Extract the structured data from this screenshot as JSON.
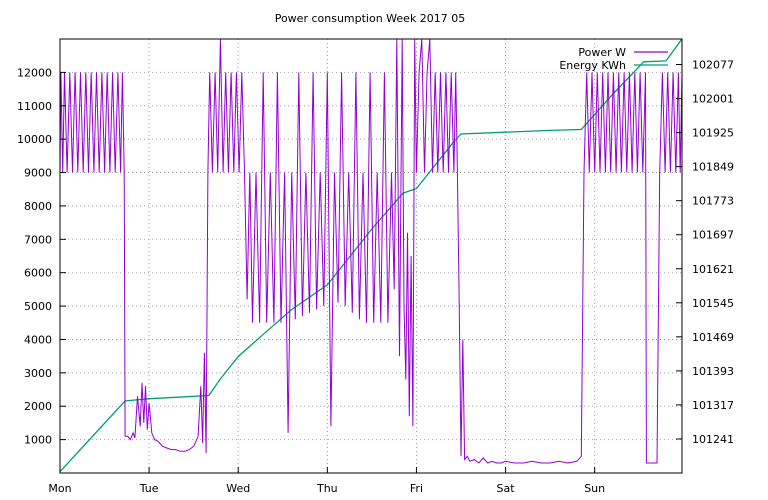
{
  "chart_data": {
    "type": "line",
    "title": "Power consumption Week 2017 05",
    "x_ticks": [
      {
        "label": "Mon",
        "x": 0
      },
      {
        "label": "Tue",
        "x": 1
      },
      {
        "label": "Wed",
        "x": 2
      },
      {
        "label": "Thu",
        "x": 3
      },
      {
        "label": "Fri",
        "x": 4
      },
      {
        "label": "Sat",
        "x": 5
      },
      {
        "label": "Sun",
        "x": 6
      }
    ],
    "xlim": [
      0,
      6.98
    ],
    "ylim_left": [
      0,
      13000
    ],
    "ylim_right": [
      101165,
      102134
    ],
    "y_ticks_left": [
      1000,
      2000,
      3000,
      4000,
      5000,
      6000,
      7000,
      8000,
      9000,
      10000,
      11000,
      12000
    ],
    "y_ticks_right": [
      101241,
      101317,
      101393,
      101469,
      101545,
      101621,
      101697,
      101773,
      101849,
      101925,
      102001,
      102077
    ],
    "grid": true,
    "legend_position": "top-right",
    "series": [
      {
        "name": "Power W",
        "axis": "left",
        "color": "#9400d3",
        "points": [
          [
            0.0,
            9000
          ],
          [
            0.01,
            12000
          ],
          [
            0.03,
            9000
          ],
          [
            0.05,
            12000
          ],
          [
            0.08,
            9000
          ],
          [
            0.11,
            12000
          ],
          [
            0.14,
            9000
          ],
          [
            0.17,
            12000
          ],
          [
            0.2,
            9000
          ],
          [
            0.23,
            12000
          ],
          [
            0.26,
            9000
          ],
          [
            0.29,
            12000
          ],
          [
            0.32,
            9000
          ],
          [
            0.35,
            12000
          ],
          [
            0.38,
            9000
          ],
          [
            0.41,
            12000
          ],
          [
            0.44,
            9000
          ],
          [
            0.47,
            12000
          ],
          [
            0.5,
            9000
          ],
          [
            0.53,
            12000
          ],
          [
            0.56,
            9000
          ],
          [
            0.59,
            12000
          ],
          [
            0.62,
            9000
          ],
          [
            0.65,
            12000
          ],
          [
            0.68,
            9000
          ],
          [
            0.7,
            12000
          ],
          [
            0.72,
            9000
          ],
          [
            0.73,
            1100
          ],
          [
            0.76,
            1100
          ],
          [
            0.79,
            1000
          ],
          [
            0.82,
            1200
          ],
          [
            0.84,
            1050
          ],
          [
            0.87,
            2300
          ],
          [
            0.9,
            1400
          ],
          [
            0.92,
            2700
          ],
          [
            0.94,
            1500
          ],
          [
            0.96,
            2600
          ],
          [
            0.98,
            1300
          ],
          [
            1.0,
            2100
          ],
          [
            1.03,
            1200
          ],
          [
            1.06,
            1000
          ],
          [
            1.1,
            950
          ],
          [
            1.15,
            800
          ],
          [
            1.2,
            750
          ],
          [
            1.25,
            700
          ],
          [
            1.3,
            700
          ],
          [
            1.35,
            650
          ],
          [
            1.4,
            650
          ],
          [
            1.45,
            700
          ],
          [
            1.5,
            800
          ],
          [
            1.55,
            1100
          ],
          [
            1.58,
            2600
          ],
          [
            1.6,
            900
          ],
          [
            1.62,
            3600
          ],
          [
            1.64,
            600
          ],
          [
            1.66,
            9000
          ],
          [
            1.68,
            12000
          ],
          [
            1.71,
            9000
          ],
          [
            1.74,
            12000
          ],
          [
            1.77,
            9000
          ],
          [
            1.8,
            13000
          ],
          [
            1.83,
            9000
          ],
          [
            1.86,
            12000
          ],
          [
            1.89,
            9000
          ],
          [
            1.92,
            12000
          ],
          [
            1.95,
            9000
          ],
          [
            1.98,
            12000
          ],
          [
            2.01,
            9000
          ],
          [
            2.04,
            12000
          ],
          [
            2.07,
            9000
          ],
          [
            2.1,
            5200
          ],
          [
            2.13,
            9000
          ],
          [
            2.16,
            4500
          ],
          [
            2.2,
            9000
          ],
          [
            2.24,
            4500
          ],
          [
            2.28,
            12000
          ],
          [
            2.32,
            4500
          ],
          [
            2.36,
            9000
          ],
          [
            2.4,
            4500
          ],
          [
            2.44,
            12000
          ],
          [
            2.48,
            4500
          ],
          [
            2.52,
            9000
          ],
          [
            2.56,
            1200
          ],
          [
            2.6,
            9000
          ],
          [
            2.64,
            4600
          ],
          [
            2.68,
            12000
          ],
          [
            2.72,
            4700
          ],
          [
            2.76,
            9000
          ],
          [
            2.8,
            4800
          ],
          [
            2.84,
            12000
          ],
          [
            2.88,
            4900
          ],
          [
            2.92,
            9000
          ],
          [
            2.96,
            5000
          ],
          [
            3.0,
            12000
          ],
          [
            3.04,
            1400
          ],
          [
            3.08,
            9000
          ],
          [
            3.12,
            5100
          ],
          [
            3.16,
            12000
          ],
          [
            3.2,
            5000
          ],
          [
            3.24,
            9000
          ],
          [
            3.28,
            4800
          ],
          [
            3.32,
            12000
          ],
          [
            3.36,
            4600
          ],
          [
            3.4,
            9000
          ],
          [
            3.44,
            4500
          ],
          [
            3.48,
            12000
          ],
          [
            3.52,
            4500
          ],
          [
            3.56,
            9000
          ],
          [
            3.6,
            4500
          ],
          [
            3.64,
            12000
          ],
          [
            3.68,
            4500
          ],
          [
            3.72,
            9000
          ],
          [
            3.75,
            5500
          ],
          [
            3.78,
            13000
          ],
          [
            3.81,
            3500
          ],
          [
            3.84,
            13000
          ],
          [
            3.86,
            5000
          ],
          [
            3.88,
            2800
          ],
          [
            3.9,
            7200
          ],
          [
            3.92,
            1700
          ],
          [
            3.94,
            6500
          ],
          [
            3.96,
            1400
          ],
          [
            3.98,
            13000
          ],
          [
            4.0,
            9000
          ],
          [
            4.03,
            12000
          ],
          [
            4.06,
            13000
          ],
          [
            4.09,
            9000
          ],
          [
            4.12,
            12000
          ],
          [
            4.15,
            13000
          ],
          [
            4.18,
            9000
          ],
          [
            4.21,
            12000
          ],
          [
            4.24,
            9000
          ],
          [
            4.27,
            12000
          ],
          [
            4.3,
            9000
          ],
          [
            4.33,
            12000
          ],
          [
            4.36,
            9000
          ],
          [
            4.39,
            12000
          ],
          [
            4.42,
            9000
          ],
          [
            4.44,
            12000
          ],
          [
            4.46,
            9000
          ],
          [
            4.48,
            5100
          ],
          [
            4.5,
            500
          ],
          [
            4.52,
            4000
          ],
          [
            4.54,
            400
          ],
          [
            4.57,
            500
          ],
          [
            4.6,
            350
          ],
          [
            4.65,
            400
          ],
          [
            4.7,
            300
          ],
          [
            4.75,
            450
          ],
          [
            4.8,
            300
          ],
          [
            4.85,
            350
          ],
          [
            4.9,
            300
          ],
          [
            4.95,
            300
          ],
          [
            5.0,
            350
          ],
          [
            5.1,
            300
          ],
          [
            5.2,
            300
          ],
          [
            5.3,
            350
          ],
          [
            5.4,
            300
          ],
          [
            5.5,
            300
          ],
          [
            5.6,
            350
          ],
          [
            5.7,
            300
          ],
          [
            5.8,
            350
          ],
          [
            5.85,
            500
          ],
          [
            5.88,
            9000
          ],
          [
            5.91,
            12000
          ],
          [
            5.94,
            9000
          ],
          [
            5.97,
            12000
          ],
          [
            6.0,
            9000
          ],
          [
            6.03,
            12000
          ],
          [
            6.06,
            9000
          ],
          [
            6.09,
            12000
          ],
          [
            6.12,
            9000
          ],
          [
            6.15,
            12000
          ],
          [
            6.18,
            9000
          ],
          [
            6.21,
            12000
          ],
          [
            6.24,
            9000
          ],
          [
            6.27,
            12000
          ],
          [
            6.3,
            9000
          ],
          [
            6.33,
            12000
          ],
          [
            6.36,
            9000
          ],
          [
            6.39,
            12000
          ],
          [
            6.42,
            9000
          ],
          [
            6.45,
            12000
          ],
          [
            6.48,
            9000
          ],
          [
            6.51,
            12000
          ],
          [
            6.54,
            9000
          ],
          [
            6.57,
            12000
          ],
          [
            6.58,
            300
          ],
          [
            6.62,
            300
          ],
          [
            6.66,
            300
          ],
          [
            6.7,
            300
          ],
          [
            6.73,
            9000
          ],
          [
            6.76,
            12000
          ],
          [
            6.79,
            9000
          ],
          [
            6.82,
            12000
          ],
          [
            6.85,
            9000
          ],
          [
            6.88,
            12000
          ],
          [
            6.91,
            9000
          ],
          [
            6.94,
            12000
          ],
          [
            6.96,
            9000
          ],
          [
            6.98,
            12000
          ]
        ]
      },
      {
        "name": "Energy KWh",
        "axis": "right",
        "color": "#009e73",
        "points": [
          [
            0.0,
            101168
          ],
          [
            0.73,
            101326
          ],
          [
            1.0,
            101331
          ],
          [
            1.3,
            101334
          ],
          [
            1.67,
            101338
          ],
          [
            1.8,
            101375
          ],
          [
            2.0,
            101425
          ],
          [
            2.3,
            101478
          ],
          [
            2.6,
            101530
          ],
          [
            3.0,
            101585
          ],
          [
            3.5,
            101710
          ],
          [
            3.85,
            101790
          ],
          [
            4.0,
            101800
          ],
          [
            4.2,
            101850
          ],
          [
            4.4,
            101900
          ],
          [
            4.5,
            101922
          ],
          [
            5.0,
            101926
          ],
          [
            5.5,
            101930
          ],
          [
            5.85,
            101932
          ],
          [
            6.2,
            102010
          ],
          [
            6.45,
            102062
          ],
          [
            6.55,
            102083
          ],
          [
            6.8,
            102085
          ],
          [
            6.98,
            102134
          ]
        ]
      }
    ]
  }
}
